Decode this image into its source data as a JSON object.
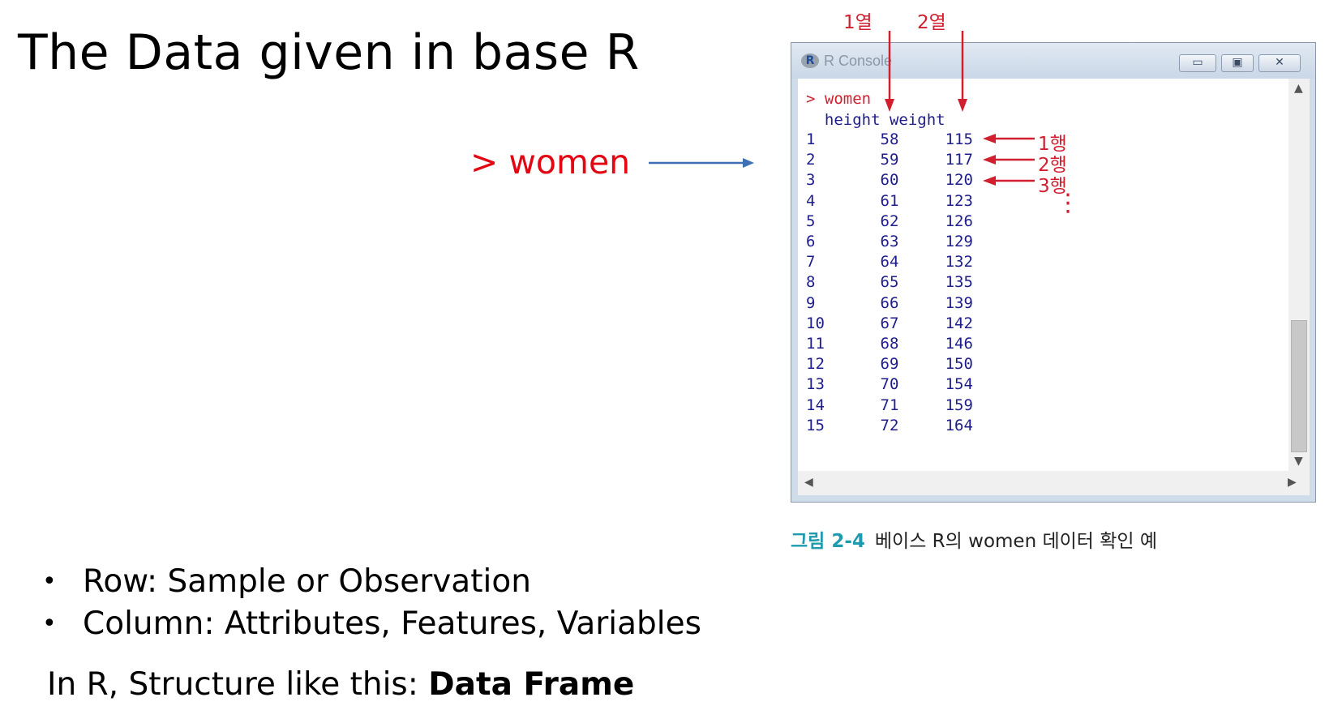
{
  "title": "The Data given in base R",
  "callout": {
    "prompt": ">  women"
  },
  "bullets": [
    {
      "marker": "•",
      "text": "Row: Sample or Observation"
    },
    {
      "marker": "•",
      "text": "Column: Attributes, Features, Variables"
    }
  ],
  "summary": {
    "prefix": "In R, Structure like this: ",
    "bold": "Data Frame"
  },
  "console": {
    "window_title": "R Console",
    "logo": "R",
    "command": "> women",
    "header": "  height weight",
    "rows": [
      {
        "id": "1",
        "height": "58",
        "weight": "115"
      },
      {
        "id": "2",
        "height": "59",
        "weight": "117"
      },
      {
        "id": "3",
        "height": "60",
        "weight": "120"
      },
      {
        "id": "4",
        "height": "61",
        "weight": "123"
      },
      {
        "id": "5",
        "height": "62",
        "weight": "126"
      },
      {
        "id": "6",
        "height": "63",
        "weight": "129"
      },
      {
        "id": "7",
        "height": "64",
        "weight": "132"
      },
      {
        "id": "8",
        "height": "65",
        "weight": "135"
      },
      {
        "id": "9",
        "height": "66",
        "weight": "139"
      },
      {
        "id": "10",
        "height": "67",
        "weight": "142"
      },
      {
        "id": "11",
        "height": "68",
        "weight": "146"
      },
      {
        "id": "12",
        "height": "69",
        "weight": "150"
      },
      {
        "id": "13",
        "height": "70",
        "weight": "154"
      },
      {
        "id": "14",
        "height": "71",
        "weight": "159"
      },
      {
        "id": "15",
        "height": "72",
        "weight": "164"
      }
    ],
    "prompt": ">",
    "buttons": {
      "minimize": "▭",
      "maximize": "▣",
      "close": "✕"
    }
  },
  "annotations": {
    "col1": "1열",
    "col2": "2열",
    "row1": "1행",
    "row2": "2행",
    "row3": "3행",
    "ellipsis": "⋮"
  },
  "caption": {
    "label": "그림 2-4",
    "text": "베이스 R의 women 데이터 확인 예"
  },
  "colors": {
    "accent_red": "#e30613",
    "console_blue": "#1e1d8c",
    "caption_teal": "#1f9bb0",
    "arrow_blue": "#3f6fb5"
  }
}
